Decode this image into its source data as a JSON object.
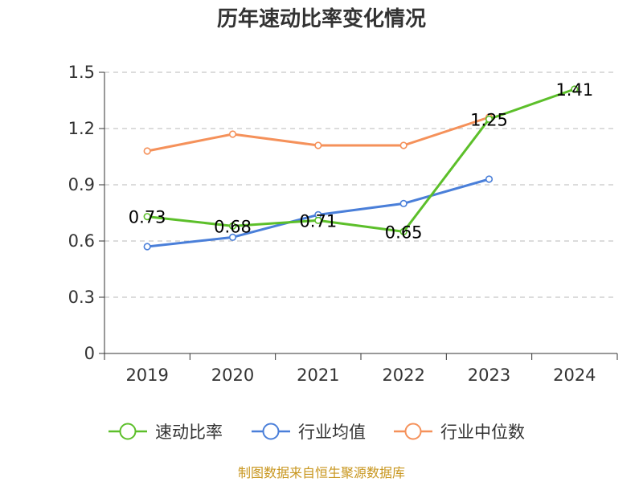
{
  "chart_data": {
    "type": "line",
    "title": "历年速动比率变化情况",
    "categories": [
      "2019",
      "2020",
      "2021",
      "2022",
      "2023",
      "2024"
    ],
    "y_ticks": [
      "0",
      "0.3",
      "0.6",
      "0.9",
      "1.2",
      "1.5"
    ],
    "ylim": [
      0,
      1.5
    ],
    "grid": true,
    "legend_position": "bottom",
    "series": [
      {
        "name": "速动比率",
        "color": "#5cbf2a",
        "values": [
          0.73,
          0.68,
          0.71,
          0.65,
          1.25,
          1.41
        ],
        "data_labels": [
          "0.73",
          "0.68",
          "0.71",
          "0.65",
          "1.25",
          "1.41"
        ]
      },
      {
        "name": "行业均值",
        "color": "#4a7fd9",
        "values": [
          0.57,
          0.62,
          0.74,
          0.8,
          0.93,
          null
        ]
      },
      {
        "name": "行业中位数",
        "color": "#f5915a",
        "values": [
          1.08,
          1.17,
          1.11,
          1.11,
          1.26,
          null
        ]
      }
    ]
  },
  "source_text": "制图数据来自恒生聚源数据库"
}
